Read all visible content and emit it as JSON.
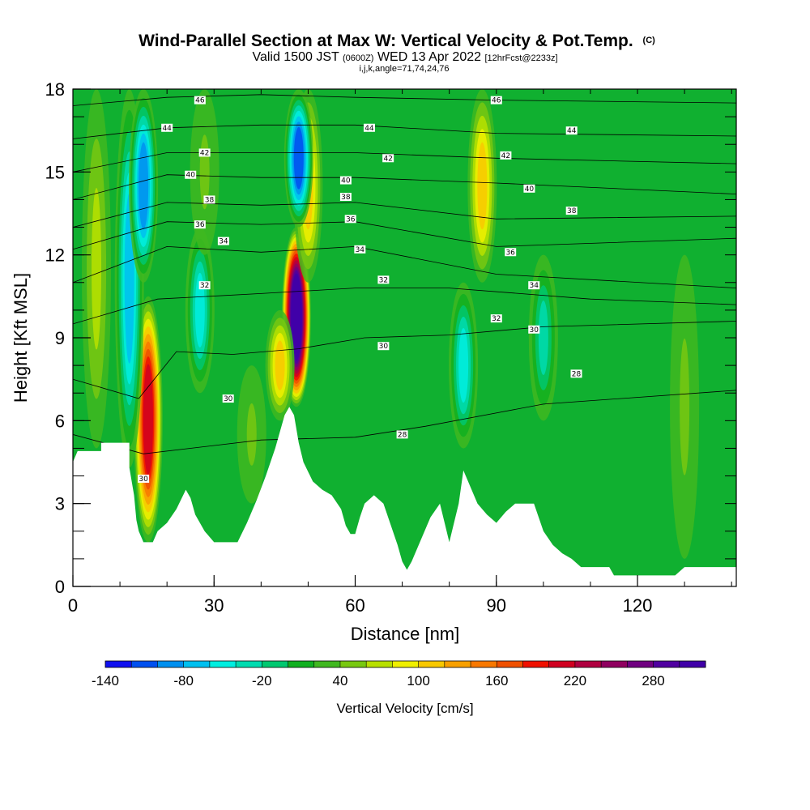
{
  "header": {
    "title": "Wind-Parallel Section at Max W: Vertical Velocity & Pot.Temp.",
    "title_mark": "(C)",
    "valid_prefix": "Valid 1500 JST",
    "valid_utc": "(0600Z)",
    "valid_date": "WED 13 Apr 2022",
    "forecast_info": "[12hrFcst@2233z]",
    "params": "i,j,k,angle=71,74,24,76"
  },
  "chart_data": {
    "type": "heatmap",
    "xlabel": "Distance [nm]",
    "ylabel": "Height [Kft MSL]",
    "xlim": [
      0,
      141
    ],
    "ylim": [
      0,
      18
    ],
    "x_ticks": [
      0,
      30,
      60,
      90,
      120
    ],
    "y_ticks": [
      0,
      3,
      6,
      9,
      12,
      15,
      18
    ],
    "x_minor_step": 10,
    "y_minor_step": 1,
    "colorbar": {
      "title": "Vertical Velocity [cm/s]",
      "min": -140,
      "max": 320,
      "step": 20,
      "tick_values": [
        -140,
        -80,
        -20,
        40,
        100,
        160,
        220,
        280
      ],
      "tick_labels": [
        "-140",
        "-80",
        "-20",
        "40",
        "100",
        "160",
        "220",
        "280"
      ],
      "colors": [
        "#1010f0",
        "#0050f0",
        "#0090f0",
        "#00c0f0",
        "#00eee0",
        "#00dcb0",
        "#00c870",
        "#10b020",
        "#40b820",
        "#78c810",
        "#b8e000",
        "#f0f000",
        "#f8c800",
        "#f8a000",
        "#f87800",
        "#f05000",
        "#f01000",
        "#d00020",
        "#b00040",
        "#900060",
        "#700080",
        "#5000a0",
        "#4000a8"
      ]
    },
    "terrain": [
      [
        0,
        4.5
      ],
      [
        1,
        4.9
      ],
      [
        6,
        4.9
      ],
      [
        6,
        5.2
      ],
      [
        12,
        5.2
      ],
      [
        12,
        4.3
      ],
      [
        13,
        3.3
      ],
      [
        13.5,
        2.4
      ],
      [
        14,
        2
      ],
      [
        15,
        1.6
      ],
      [
        17,
        1.6
      ],
      [
        18,
        2
      ],
      [
        20,
        2.3
      ],
      [
        22,
        2.8
      ],
      [
        24,
        3.5
      ],
      [
        25,
        3.2
      ],
      [
        26,
        2.6
      ],
      [
        28,
        2
      ],
      [
        30,
        1.6
      ],
      [
        35,
        1.6
      ],
      [
        37,
        2.3
      ],
      [
        39,
        3.1
      ],
      [
        41,
        4
      ],
      [
        43,
        5
      ],
      [
        45,
        6.2
      ],
      [
        46,
        6.5
      ],
      [
        47,
        6.2
      ],
      [
        48,
        5.2
      ],
      [
        49,
        4.5
      ],
      [
        51,
        3.8
      ],
      [
        53,
        3.5
      ],
      [
        55,
        3.3
      ],
      [
        57,
        2.8
      ],
      [
        58,
        2.2
      ],
      [
        59,
        1.9
      ],
      [
        60,
        1.9
      ],
      [
        61,
        2.5
      ],
      [
        62,
        3
      ],
      [
        64,
        3.3
      ],
      [
        66,
        3
      ],
      [
        67,
        2.5
      ],
      [
        69,
        1.5
      ],
      [
        70,
        0.9
      ],
      [
        71,
        0.6
      ],
      [
        72,
        0.9
      ],
      [
        74,
        1.7
      ],
      [
        76,
        2.5
      ],
      [
        78,
        3
      ],
      [
        79,
        2.3
      ],
      [
        80,
        1.6
      ],
      [
        82,
        3
      ],
      [
        83,
        4.2
      ],
      [
        84,
        3.8
      ],
      [
        86,
        3
      ],
      [
        88,
        2.6
      ],
      [
        90,
        2.3
      ],
      [
        92,
        2.7
      ],
      [
        94,
        3
      ],
      [
        98,
        3
      ],
      [
        100,
        2
      ],
      [
        102,
        1.5
      ],
      [
        104,
        1.2
      ],
      [
        106,
        1
      ],
      [
        108,
        0.7
      ],
      [
        114,
        0.7
      ],
      [
        115,
        0.4
      ],
      [
        120,
        0.4
      ],
      [
        128,
        0.4
      ],
      [
        130,
        0.7
      ],
      [
        141,
        0.7
      ]
    ],
    "vertical_velocity_features": [
      {
        "x": 16,
        "y_bottom": 1.6,
        "y_top": 10.5,
        "value": 200
      },
      {
        "x": 12,
        "y_bottom": 4.3,
        "y_top": 18,
        "value": -80
      },
      {
        "x": 47.5,
        "y_bottom": 6.5,
        "y_top": 13,
        "value": 320
      },
      {
        "x": 44,
        "y_bottom": 6,
        "y_top": 10,
        "value": 100
      },
      {
        "x": 50,
        "y_bottom": 11,
        "y_top": 18,
        "value": 100
      },
      {
        "x": 48,
        "y_bottom": 13,
        "y_top": 18,
        "value": -120
      },
      {
        "x": 27,
        "y_bottom": 7,
        "y_top": 13,
        "value": -60
      },
      {
        "x": 28,
        "y_bottom": 12,
        "y_top": 18,
        "value": 40
      },
      {
        "x": 15,
        "y_bottom": 11,
        "y_top": 18,
        "value": -100
      },
      {
        "x": 38,
        "y_bottom": 3,
        "y_top": 8,
        "value": 40
      },
      {
        "x": 83,
        "y_bottom": 5,
        "y_top": 11,
        "value": -50
      },
      {
        "x": 87,
        "y_bottom": 11,
        "y_top": 18,
        "value": 100
      },
      {
        "x": 100,
        "y_bottom": 6,
        "y_top": 12,
        "value": -40
      },
      {
        "x": 130,
        "y_bottom": 1,
        "y_top": 12,
        "value": 40
      },
      {
        "x": 5,
        "y_bottom": 5,
        "y_top": 18,
        "value": 60
      }
    ],
    "theta_contours": [
      {
        "value": 28,
        "points": [
          [
            0,
            5.5
          ],
          [
            15,
            4.8
          ],
          [
            40,
            5.3
          ],
          [
            60,
            5.4
          ],
          [
            75,
            5.8
          ],
          [
            100,
            6.6
          ],
          [
            141,
            7.1
          ]
        ],
        "labels": [
          {
            "x": 70,
            "y": 5.5
          },
          {
            "x": 107,
            "y": 7.7
          }
        ]
      },
      {
        "value": 30,
        "points": [
          [
            0,
            7.5
          ],
          [
            14,
            6.8
          ],
          [
            22,
            8.5
          ],
          [
            34,
            8.4
          ],
          [
            48,
            8.6
          ],
          [
            62,
            9
          ],
          [
            80,
            9.1
          ],
          [
            100,
            9.4
          ],
          [
            141,
            9.6
          ]
        ],
        "labels": [
          {
            "x": 15,
            "y": 3.9
          },
          {
            "x": 33,
            "y": 6.8
          },
          {
            "x": 66,
            "y": 8.7
          },
          {
            "x": 98,
            "y": 9.3
          }
        ]
      },
      {
        "value": 32,
        "points": [
          [
            0,
            9.5
          ],
          [
            18,
            10.4
          ],
          [
            40,
            10.6
          ],
          [
            60,
            10.8
          ],
          [
            80,
            10.8
          ],
          [
            110,
            10.4
          ],
          [
            141,
            10.2
          ]
        ],
        "labels": [
          {
            "x": 28,
            "y": 10.9
          },
          {
            "x": 66,
            "y": 11.1
          },
          {
            "x": 90,
            "y": 9.7
          }
        ]
      },
      {
        "value": 34,
        "points": [
          [
            0,
            11
          ],
          [
            20,
            12.3
          ],
          [
            40,
            12.1
          ],
          [
            60,
            12.3
          ],
          [
            90,
            11.3
          ],
          [
            141,
            10.8
          ]
        ],
        "labels": [
          {
            "x": 32,
            "y": 12.5
          },
          {
            "x": 61,
            "y": 12.2
          },
          {
            "x": 98,
            "y": 10.9
          }
        ]
      },
      {
        "value": 36,
        "points": [
          [
            0,
            12.2
          ],
          [
            20,
            13.2
          ],
          [
            40,
            13.1
          ],
          [
            60,
            13.2
          ],
          [
            90,
            12.3
          ],
          [
            141,
            12.6
          ]
        ],
        "labels": [
          {
            "x": 27,
            "y": 13.1
          },
          {
            "x": 59,
            "y": 13.3
          },
          {
            "x": 93,
            "y": 12.1
          }
        ]
      },
      {
        "value": 38,
        "points": [
          [
            0,
            13
          ],
          [
            20,
            13.9
          ],
          [
            40,
            13.8
          ],
          [
            60,
            13.9
          ],
          [
            90,
            13.3
          ],
          [
            141,
            13.4
          ]
        ],
        "labels": [
          {
            "x": 29,
            "y": 14
          },
          {
            "x": 58,
            "y": 14.1
          },
          {
            "x": 106,
            "y": 13.6
          }
        ]
      },
      {
        "value": 40,
        "points": [
          [
            0,
            14
          ],
          [
            20,
            14.9
          ],
          [
            40,
            14.8
          ],
          [
            60,
            14.8
          ],
          [
            90,
            14.6
          ],
          [
            141,
            14.2
          ]
        ],
        "labels": [
          {
            "x": 25,
            "y": 14.9
          },
          {
            "x": 58,
            "y": 14.7
          },
          {
            "x": 97,
            "y": 14.4
          }
        ]
      },
      {
        "value": 42,
        "points": [
          [
            0,
            15
          ],
          [
            20,
            15.7
          ],
          [
            40,
            15.7
          ],
          [
            60,
            15.7
          ],
          [
            90,
            15.5
          ],
          [
            141,
            15.3
          ]
        ],
        "labels": [
          {
            "x": 28,
            "y": 15.7
          },
          {
            "x": 67,
            "y": 15.5
          },
          {
            "x": 92,
            "y": 15.6
          }
        ]
      },
      {
        "value": 44,
        "points": [
          [
            0,
            16.2
          ],
          [
            20,
            16.6
          ],
          [
            40,
            16.7
          ],
          [
            60,
            16.7
          ],
          [
            90,
            16.4
          ],
          [
            141,
            16.3
          ]
        ],
        "labels": [
          {
            "x": 20,
            "y": 16.6
          },
          {
            "x": 63,
            "y": 16.6
          },
          {
            "x": 106,
            "y": 16.5
          }
        ]
      },
      {
        "value": 46,
        "points": [
          [
            0,
            17.4
          ],
          [
            20,
            17.7
          ],
          [
            40,
            17.8
          ],
          [
            60,
            17.7
          ],
          [
            90,
            17.6
          ],
          [
            141,
            17.5
          ]
        ],
        "labels": [
          {
            "x": 27,
            "y": 17.6
          },
          {
            "x": 90,
            "y": 17.6
          }
        ]
      }
    ]
  }
}
